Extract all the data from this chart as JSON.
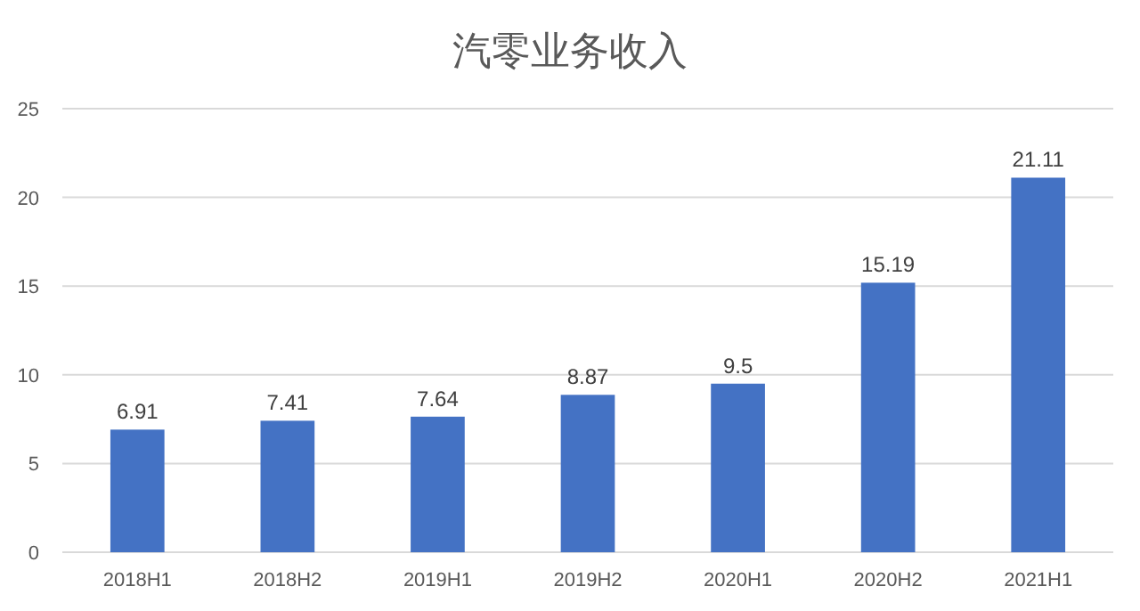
{
  "chart_data": {
    "type": "bar",
    "title": "汽零业务收入",
    "categories": [
      "2018H1",
      "2018H2",
      "2019H1",
      "2019H2",
      "2020H1",
      "2020H2",
      "2021H1"
    ],
    "values": [
      6.91,
      7.41,
      7.64,
      8.87,
      9.5,
      15.19,
      21.11
    ],
    "color": "#4472c4",
    "ylim": [
      0,
      25
    ],
    "yticks": [
      0,
      5,
      10,
      15,
      20,
      25
    ],
    "grid": "y",
    "data_labels": true
  }
}
